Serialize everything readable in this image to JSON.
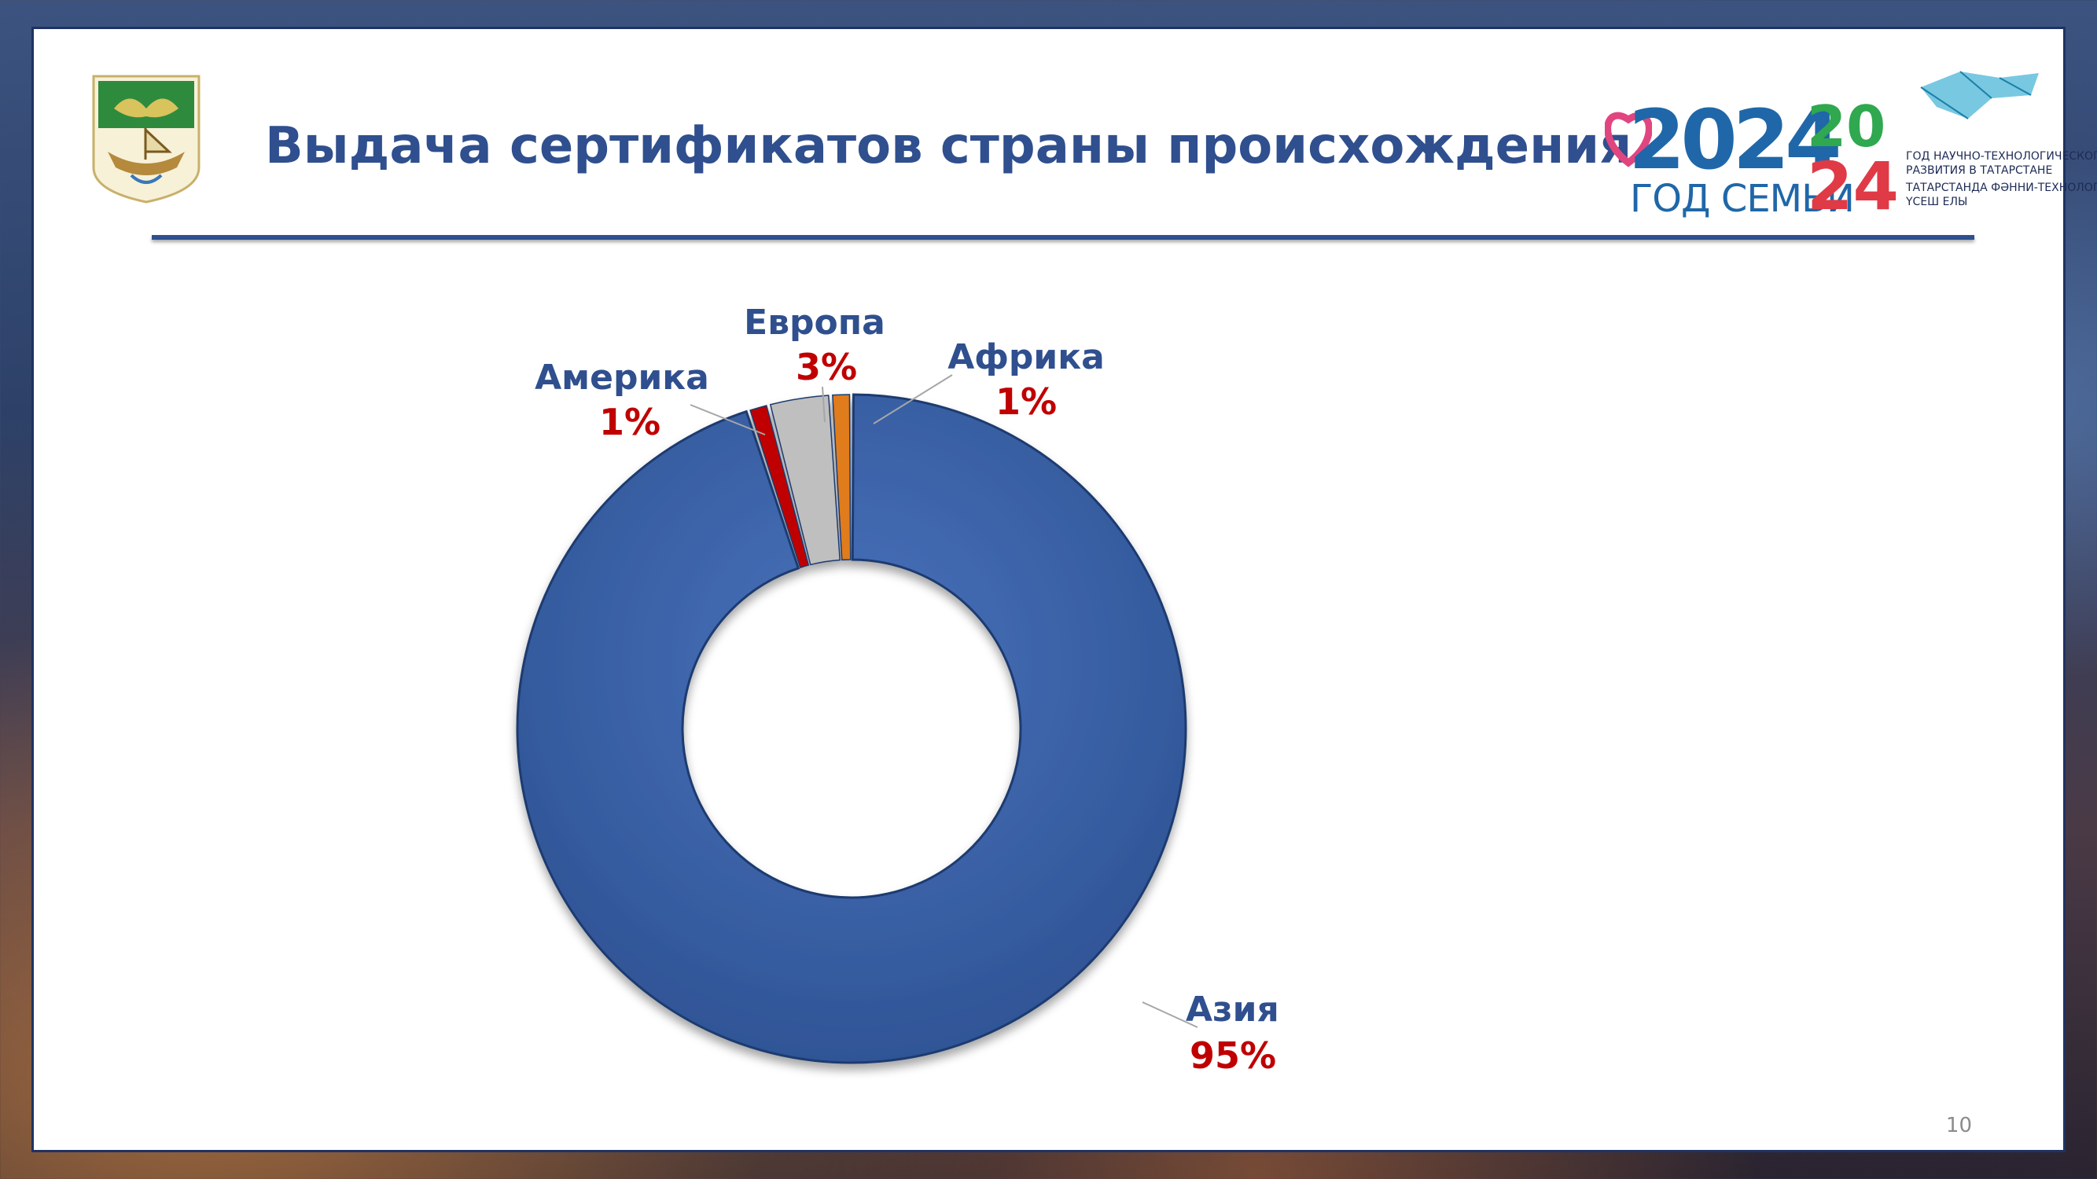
{
  "slide": {
    "title": "Выдача сертификатов страны происхождения",
    "page_number": "10"
  },
  "logos": {
    "year2024": {
      "number": "2024",
      "subtitle": "ГОД СЕМЬИ"
    },
    "science_year": {
      "line1": "ГОД НАУЧНО-ТЕХНОЛОГИЧЕСКОГО",
      "line2": "РАЗВИТИЯ В ТАТАРСТАНЕ",
      "line3": "ТАТАРСТАНДА ФӘННИ-ТЕХНОЛОГИК",
      "line4": "ҮСЕШ ЕЛЫ"
    }
  },
  "colors": {
    "title": "#2f4f8e",
    "asia": "#3a5fa6",
    "america": "#c00000",
    "europe": "#bfbfbf",
    "africa": "#e07b1a",
    "percent_text": "#c00000"
  },
  "chart_data": {
    "type": "pie",
    "title": "",
    "donut": true,
    "categories": [
      "Азия",
      "Америка",
      "Европа",
      "Африка"
    ],
    "values": [
      95,
      1,
      3,
      1
    ],
    "labels": [
      "95%",
      "1%",
      "3%",
      "1%"
    ]
  }
}
